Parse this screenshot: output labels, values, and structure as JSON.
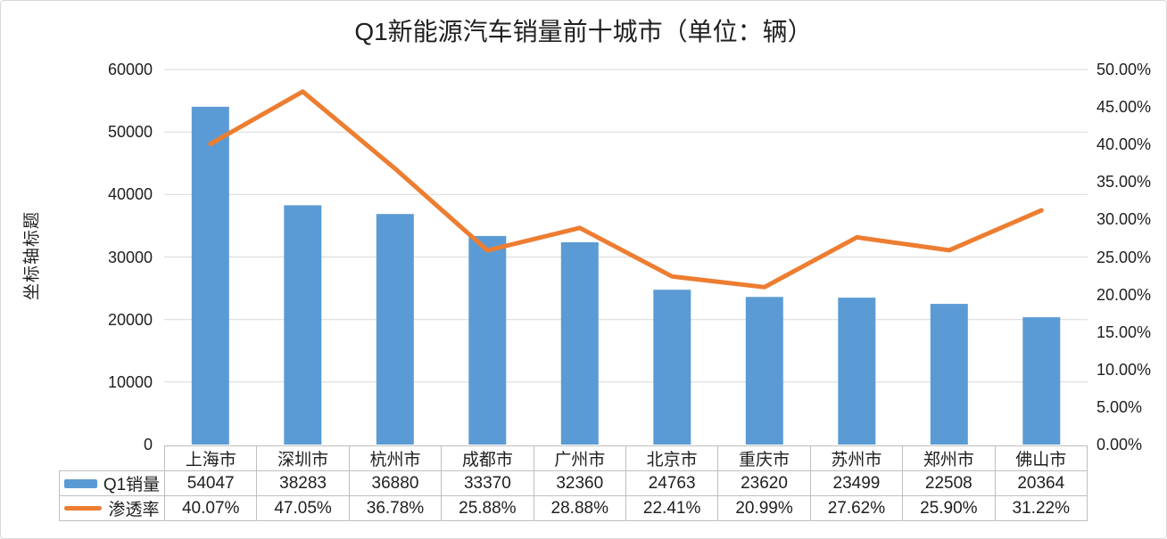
{
  "title": "Q1新能源汽车销量前十城市（单位：辆）",
  "colors": {
    "bar": "#5B9BD5",
    "line": "#ED7D31",
    "grid": "#D9D9D9",
    "table_border": "#BFBFBF",
    "text": "#1F1F1F"
  },
  "chart_data": {
    "type": "bar",
    "subtype": "combo-bar-line-with-data-table",
    "title": "Q1新能源汽车销量前十城市（单位：辆）",
    "categories": [
      "上海市",
      "深圳市",
      "杭州市",
      "成都市",
      "广州市",
      "北京市",
      "重庆市",
      "苏州市",
      "郑州市",
      "佛山市"
    ],
    "series": [
      {
        "name": "Q1销量",
        "type": "bar",
        "axis": "left",
        "values": [
          54047,
          38283,
          36880,
          33370,
          32360,
          24763,
          23620,
          23499,
          22508,
          20364
        ],
        "display": [
          "54047",
          "38283",
          "36880",
          "33370",
          "32360",
          "24763",
          "23620",
          "23499",
          "22508",
          "20364"
        ]
      },
      {
        "name": "渗透率",
        "type": "line",
        "axis": "right",
        "values": [
          40.07,
          47.05,
          36.78,
          25.88,
          28.88,
          22.41,
          20.99,
          27.62,
          25.9,
          31.22
        ],
        "display": [
          "40.07%",
          "47.05%",
          "36.78%",
          "25.88%",
          "28.88%",
          "22.41%",
          "20.99%",
          "27.62%",
          "25.90%",
          "31.22%"
        ]
      }
    ],
    "left_axis": {
      "title": "坐标轴标题",
      "min": 0,
      "max": 60000,
      "step": 10000,
      "tick_labels": [
        "0",
        "10000",
        "20000",
        "30000",
        "40000",
        "50000",
        "60000"
      ]
    },
    "right_axis": {
      "min": 0,
      "max": 50,
      "step": 5,
      "tick_labels": [
        "0.00%",
        "5.00%",
        "10.00%",
        "15.00%",
        "20.00%",
        "25.00%",
        "30.00%",
        "35.00%",
        "40.00%",
        "45.00%",
        "50.00%"
      ]
    },
    "grid": true,
    "legend_position": "table-left"
  }
}
